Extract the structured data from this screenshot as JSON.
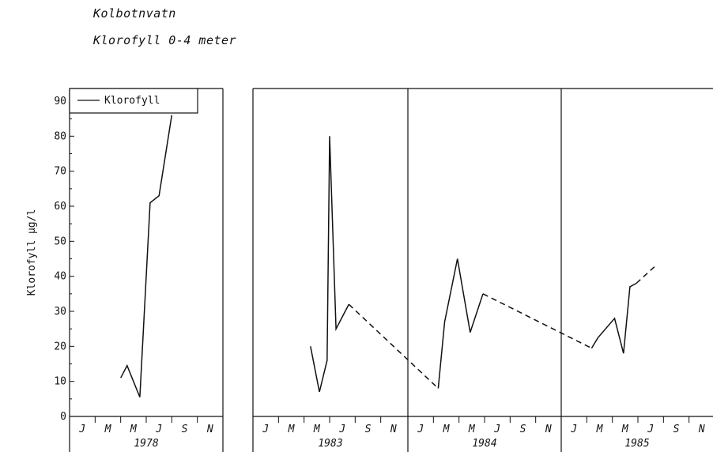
{
  "header": {
    "title": "Kolbotnvatn",
    "subtitle": "Klorofyll 0-4 meter"
  },
  "colors": {
    "line": "#111111",
    "frame": "#111111"
  },
  "chart_data": {
    "type": "line",
    "ylabel": "Klorofyll µg/l",
    "ylim": [
      0,
      90
    ],
    "y_ticks": [
      "0",
      "10",
      "20",
      "30",
      "40",
      "50",
      "60",
      "70",
      "80",
      "90"
    ],
    "legend": {
      "label": "Klorofyll",
      "position": "top-left"
    },
    "months": [
      "J",
      "M",
      "M",
      "J",
      "S",
      "N"
    ],
    "years": [
      "1978",
      "1983",
      "1984",
      "1985"
    ],
    "series": [
      {
        "name": "Klorofyll",
        "segments": [
          {
            "year": "1978",
            "style": "solid",
            "points": [
              [
                4.5,
                11
              ],
              [
                5.0,
                14.5
              ],
              [
                6.0,
                5.5
              ],
              [
                6.8,
                61
              ],
              [
                7.5,
                63
              ],
              [
                8.5,
                86
              ]
            ]
          },
          {
            "year": "1983",
            "style": "solid",
            "points": [
              [
                5.0,
                20
              ],
              [
                5.7,
                7
              ],
              [
                6.3,
                16
              ],
              [
                6.5,
                80
              ],
              [
                7.0,
                25
              ],
              [
                8.0,
                32
              ]
            ]
          },
          {
            "year": "1983-1984",
            "style": "dashed",
            "points": [
              [
                8.0,
                32
              ],
              [
                15.0,
                8
              ]
            ]
          },
          {
            "year": "1984",
            "style": "solid",
            "points": [
              [
                15.0,
                8
              ],
              [
                15.5,
                27
              ],
              [
                16.5,
                45
              ],
              [
                17.5,
                24
              ],
              [
                18.5,
                35
              ]
            ]
          },
          {
            "year": "1984-1985",
            "style": "dashed",
            "points": [
              [
                18.5,
                35
              ],
              [
                27.0,
                19.5
              ]
            ]
          },
          {
            "year": "1985",
            "style": "solid",
            "points": [
              [
                27.0,
                19.5
              ],
              [
                27.5,
                22.5
              ],
              [
                28.8,
                28
              ],
              [
                29.5,
                18
              ],
              [
                30.0,
                37
              ],
              [
                30.5,
                38
              ]
            ]
          },
          {
            "year": "1985",
            "style": "dashed",
            "points": [
              [
                30.5,
                38
              ],
              [
                32.0,
                43
              ]
            ]
          }
        ]
      }
    ]
  }
}
